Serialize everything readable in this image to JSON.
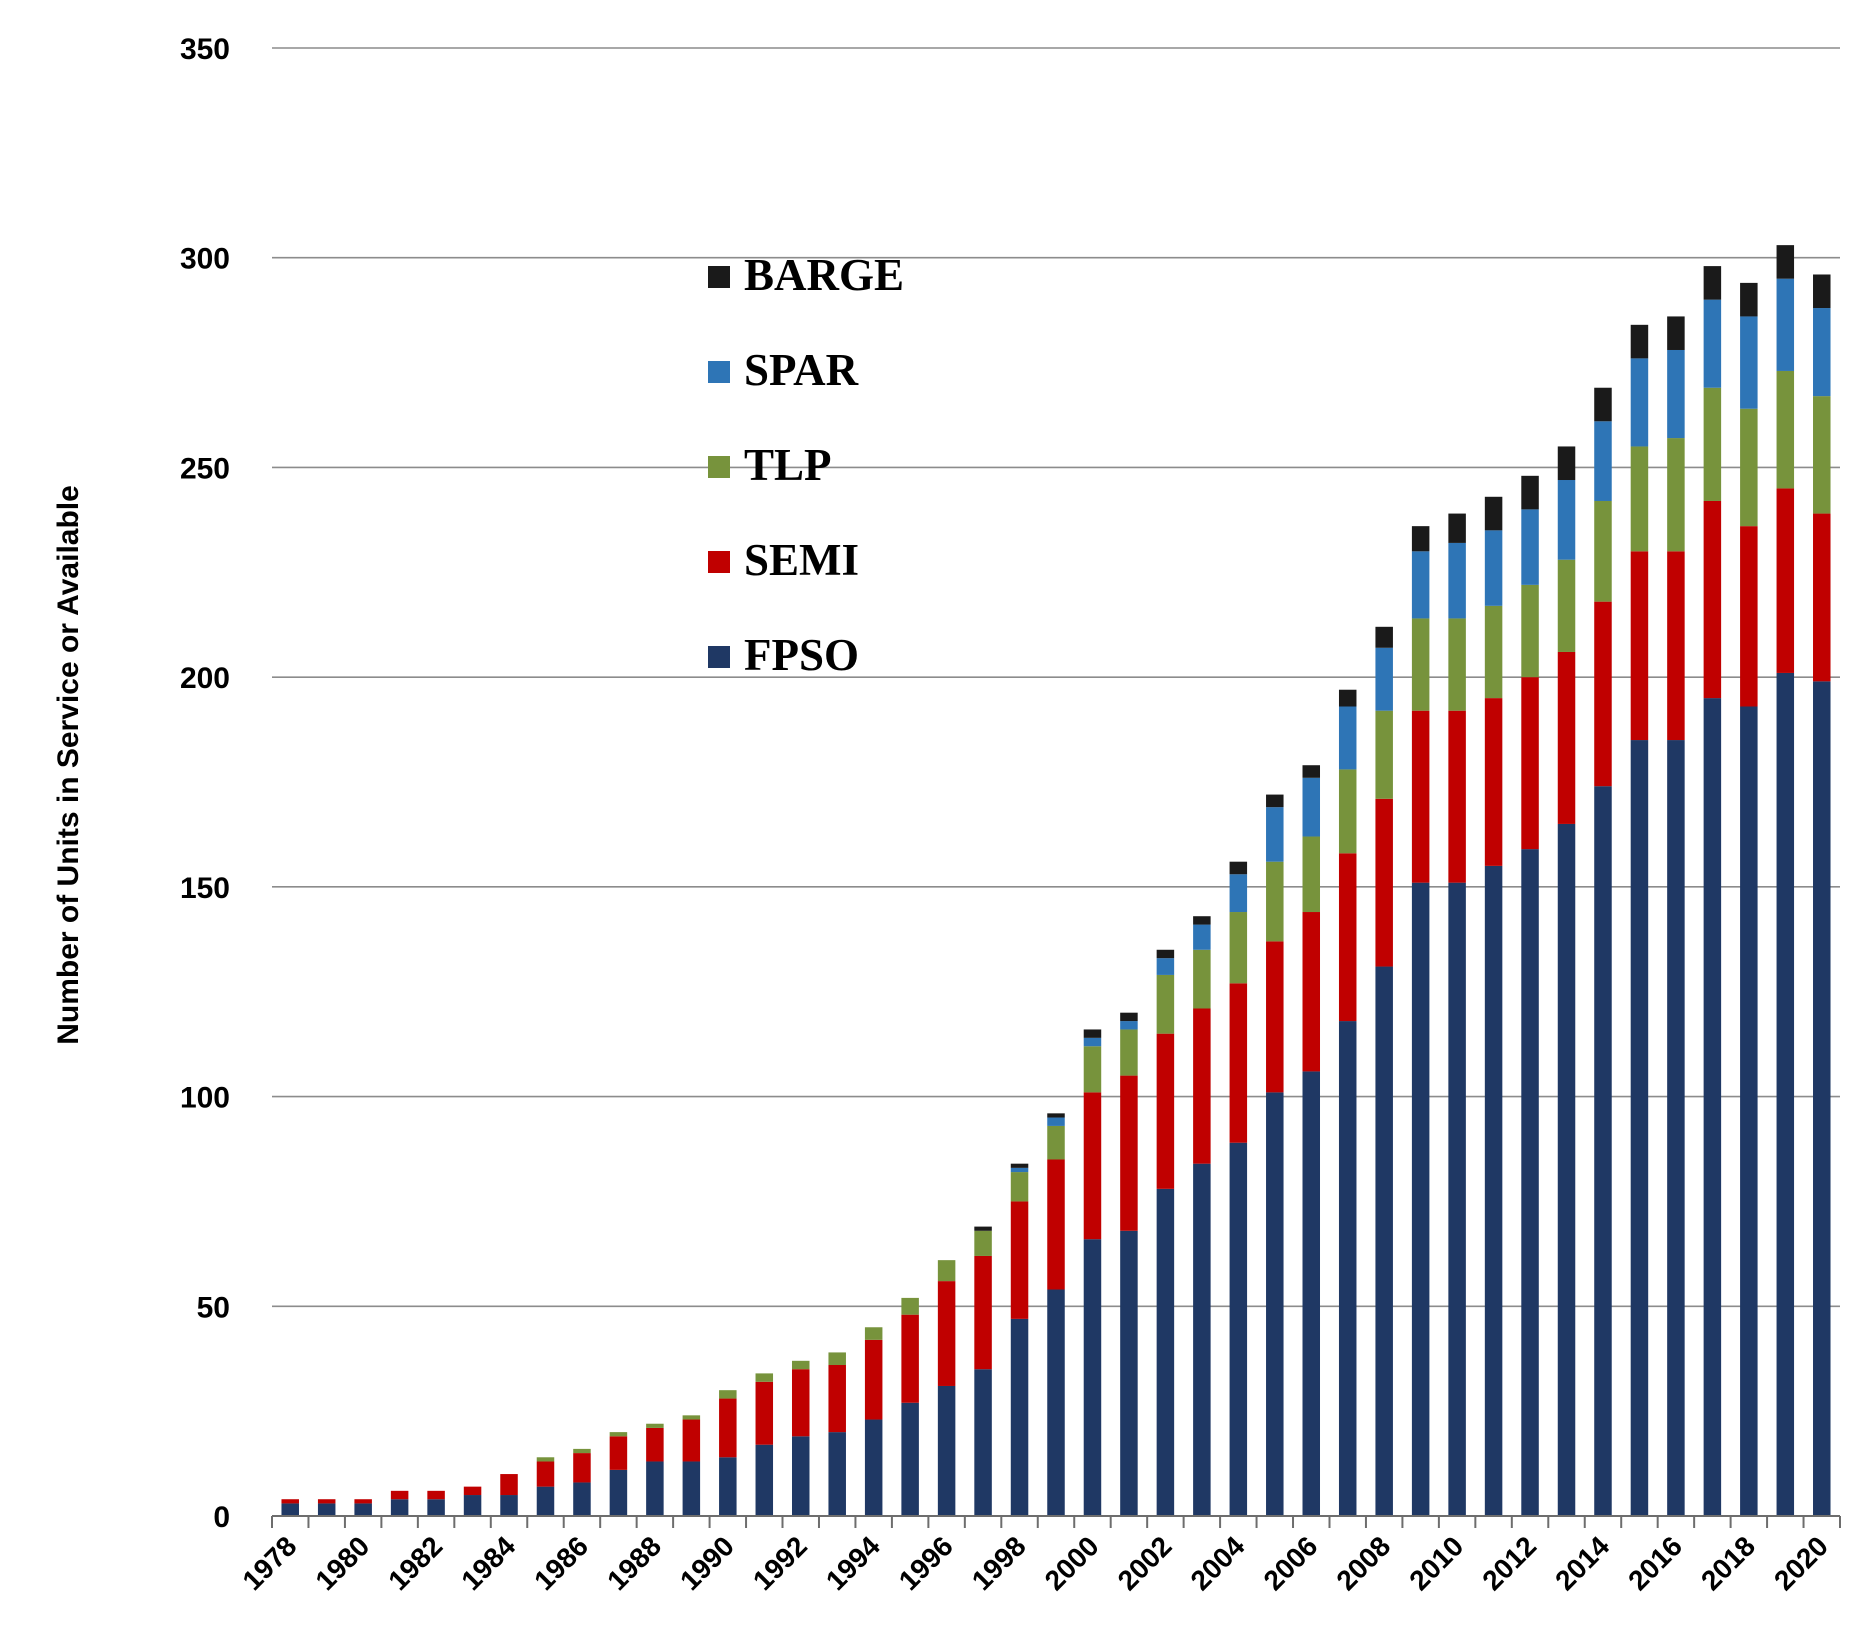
{
  "chart_data": {
    "type": "bar",
    "stacked": true,
    "title": "",
    "xlabel": "",
    "ylabel": "Number of Units in Service  or Available",
    "ylim": [
      0,
      350
    ],
    "yticks": [
      0,
      50,
      100,
      150,
      200,
      250,
      300,
      350
    ],
    "grid": true,
    "legend_position": "top-center",
    "x": [
      1978,
      1979,
      1980,
      1981,
      1982,
      1983,
      1984,
      1985,
      1986,
      1987,
      1988,
      1989,
      1990,
      1991,
      1992,
      1993,
      1994,
      1995,
      1996,
      1997,
      1998,
      1999,
      2000,
      2001,
      2002,
      2003,
      2004,
      2005,
      2006,
      2007,
      2008,
      2009,
      2010,
      2011,
      2012,
      2013,
      2014,
      2015,
      2016,
      2017,
      2018,
      2019,
      2020
    ],
    "xtick_labels": [
      "1978",
      "1980",
      "1982",
      "1984",
      "1986",
      "1988",
      "1990",
      "1992",
      "1994",
      "1996",
      "1998",
      "2000",
      "2002",
      "2004",
      "2006",
      "2008",
      "2010",
      "2012",
      "2014",
      "2016",
      "2018",
      "2020"
    ],
    "series": [
      {
        "name": "FPSO",
        "color": "#1f3864",
        "values": [
          3,
          3,
          3,
          4,
          4,
          5,
          5,
          7,
          8,
          11,
          13,
          13,
          14,
          17,
          19,
          20,
          23,
          27,
          31,
          35,
          47,
          54,
          66,
          68,
          78,
          84,
          89,
          101,
          106,
          118,
          131,
          151,
          151,
          155,
          159,
          165,
          174,
          185,
          185,
          195,
          193,
          201,
          199
        ]
      },
      {
        "name": "SEMI",
        "color": "#c00000",
        "values": [
          1,
          1,
          1,
          2,
          2,
          2,
          5,
          6,
          7,
          8,
          8,
          10,
          14,
          15,
          16,
          16,
          19,
          21,
          25,
          27,
          28,
          31,
          35,
          37,
          37,
          37,
          38,
          36,
          38,
          40,
          40,
          41,
          41,
          40,
          41,
          41,
          44,
          45,
          45,
          47,
          43,
          44,
          40
        ]
      },
      {
        "name": "TLP",
        "color": "#77933c",
        "values": [
          0,
          0,
          0,
          0,
          0,
          0,
          0,
          1,
          1,
          1,
          1,
          1,
          2,
          2,
          2,
          3,
          3,
          4,
          5,
          6,
          7,
          8,
          11,
          11,
          14,
          14,
          17,
          19,
          18,
          20,
          21,
          22,
          22,
          22,
          22,
          22,
          24,
          25,
          27,
          27,
          28,
          28,
          28
        ]
      },
      {
        "name": "SPAR",
        "color": "#2e75b6",
        "values": [
          0,
          0,
          0,
          0,
          0,
          0,
          0,
          0,
          0,
          0,
          0,
          0,
          0,
          0,
          0,
          0,
          0,
          0,
          0,
          0,
          1,
          2,
          2,
          2,
          4,
          6,
          9,
          13,
          14,
          15,
          15,
          16,
          18,
          18,
          18,
          19,
          19,
          21,
          21,
          21,
          22,
          22,
          21
        ]
      },
      {
        "name": "BARGE",
        "color": "#1a1a1a",
        "values": [
          0,
          0,
          0,
          0,
          0,
          0,
          0,
          0,
          0,
          0,
          0,
          0,
          0,
          0,
          0,
          0,
          0,
          0,
          0,
          1,
          1,
          1,
          2,
          2,
          2,
          2,
          3,
          3,
          3,
          4,
          5,
          6,
          7,
          8,
          8,
          8,
          8,
          8,
          8,
          8,
          8,
          8,
          8
        ]
      }
    ]
  }
}
